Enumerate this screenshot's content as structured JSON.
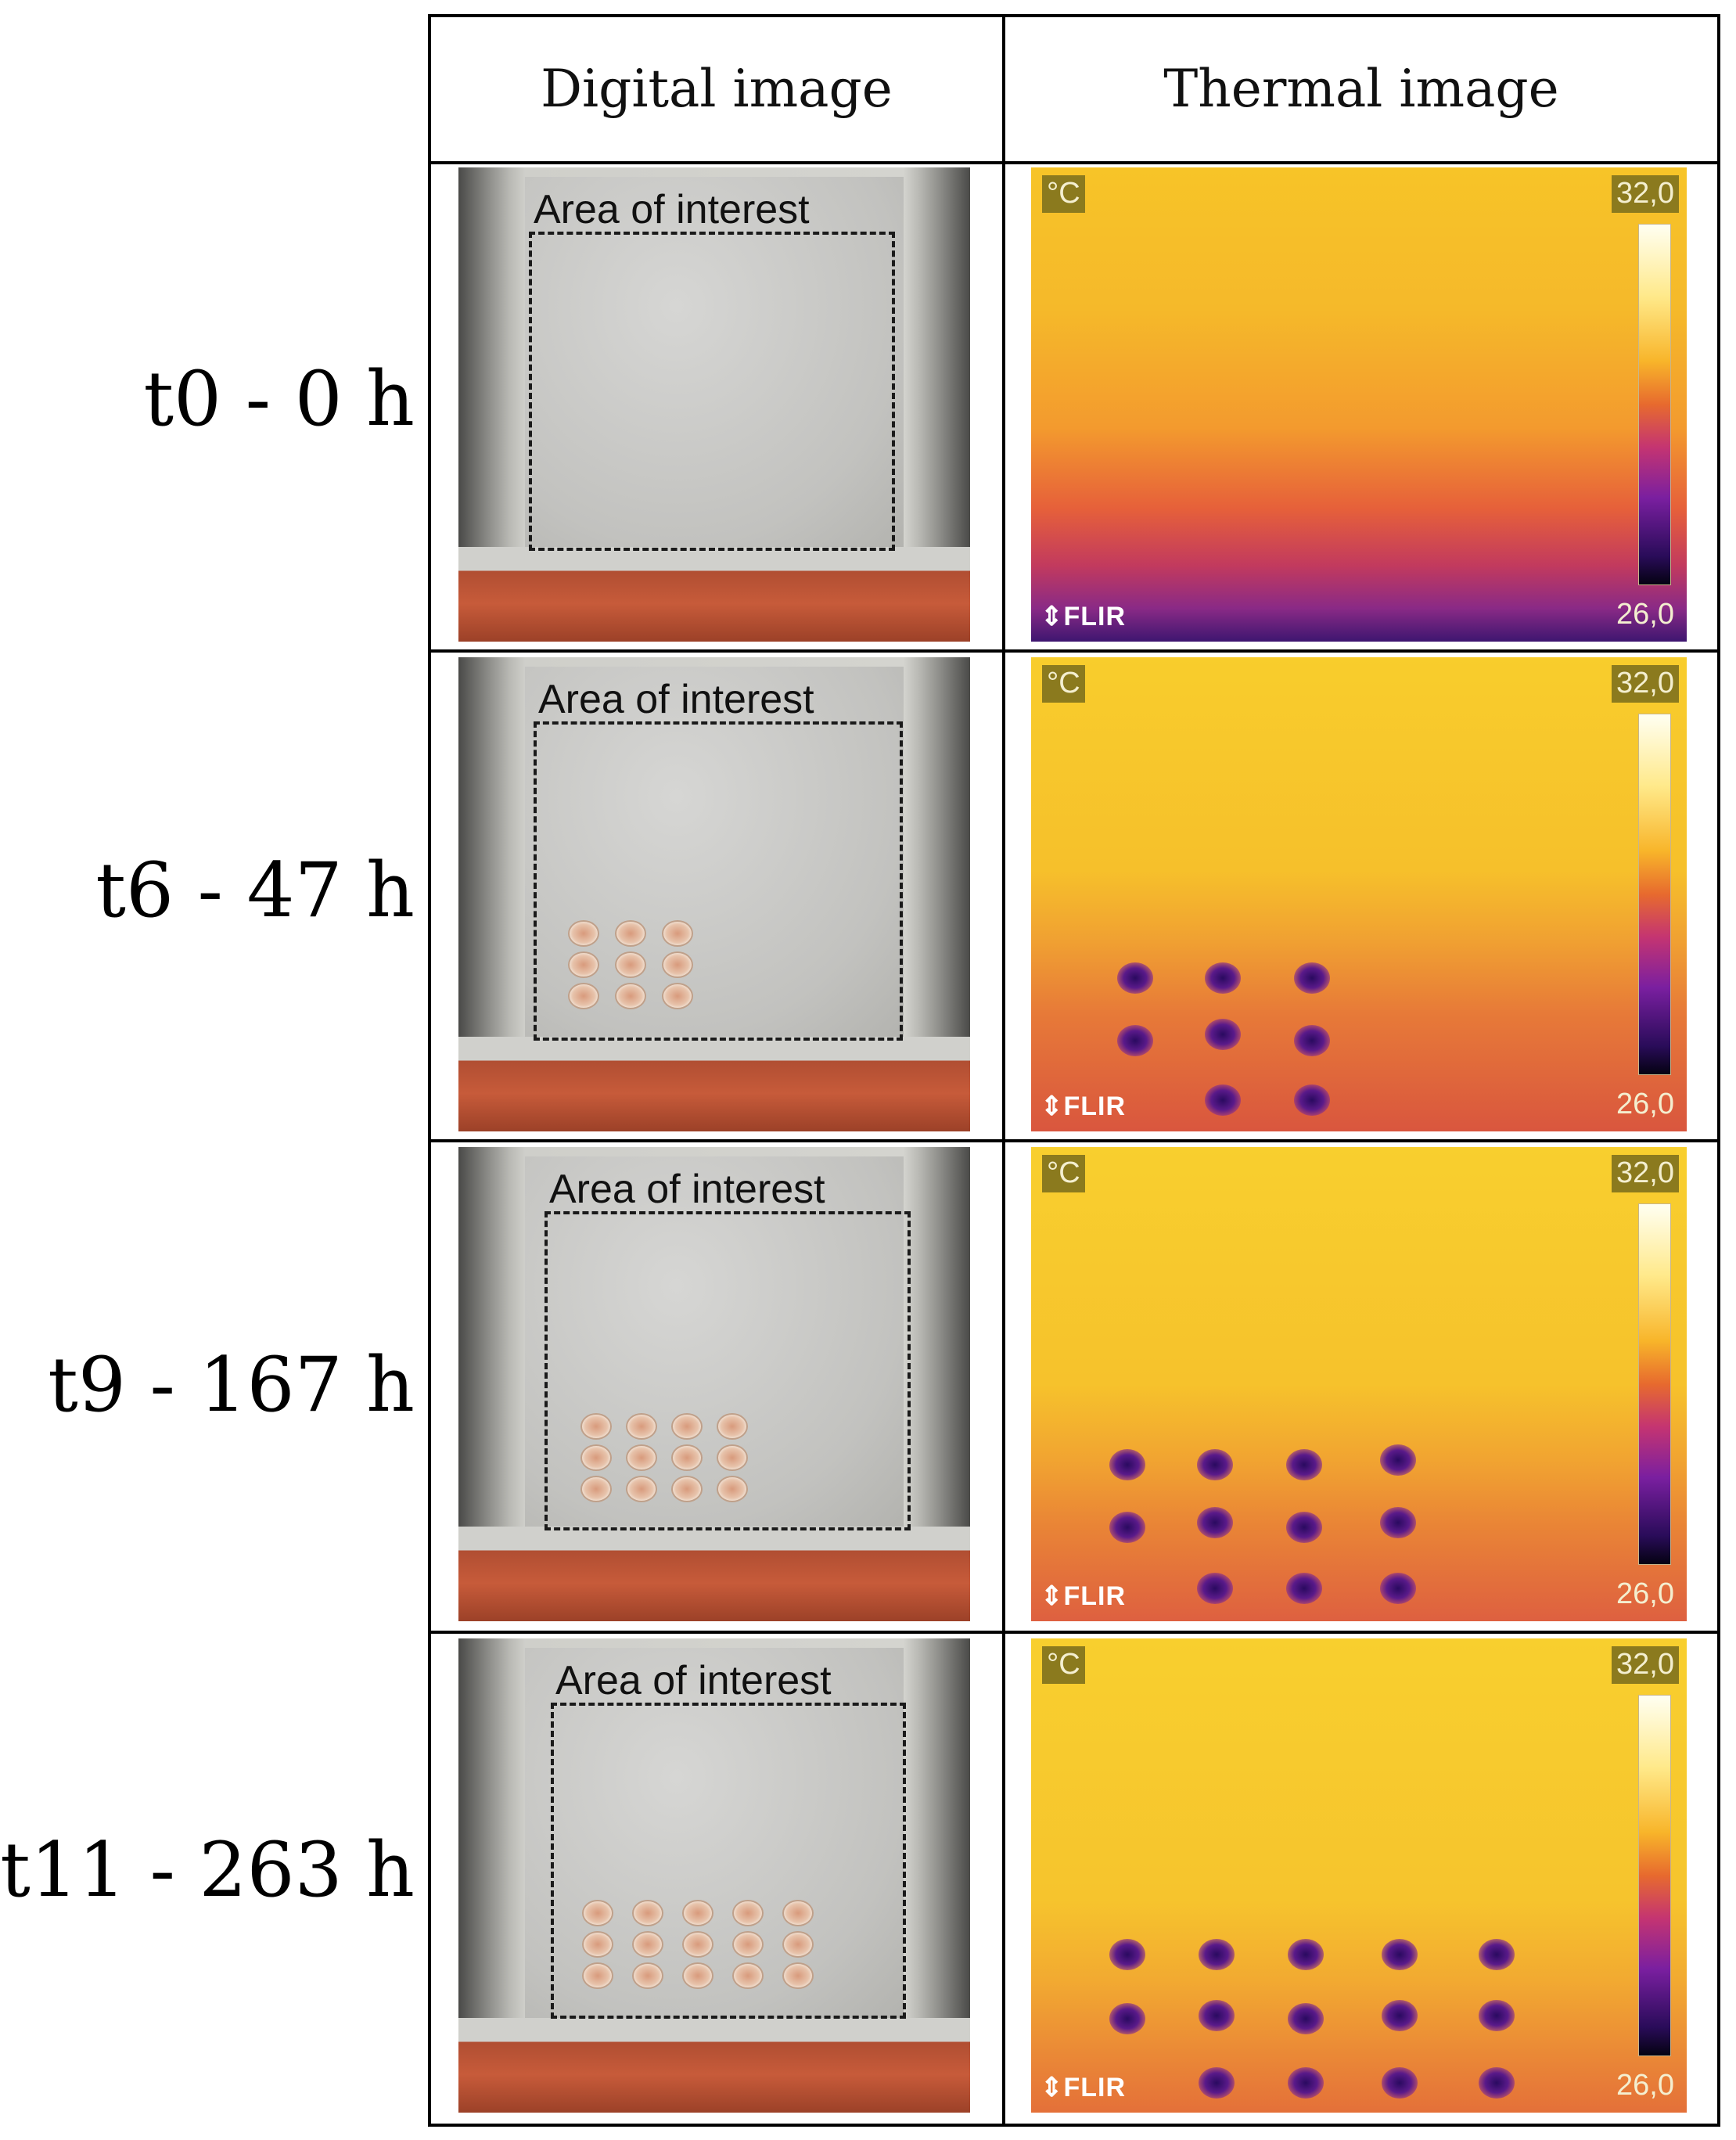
{
  "headers": {
    "digital": "Digital image",
    "thermal": "Thermal image"
  },
  "rows": [
    {
      "label": "t0 - 0 h",
      "aoi": "Area of interest",
      "unit": "°C",
      "max": "32,0",
      "min": "26,0",
      "logo": "FLIR"
    },
    {
      "label": "t6 - 47 h",
      "aoi": "Area of interest",
      "unit": "°C",
      "max": "32,0",
      "min": "26,0",
      "logo": "FLIR"
    },
    {
      "label": "t9 - 167 h",
      "aoi": "Area of interest",
      "unit": "°C",
      "max": "32,0",
      "min": "26,0",
      "logo": "FLIR"
    },
    {
      "label": "t11 - 263 h",
      "aoi": "Area of interest",
      "unit": "°C",
      "max": "32,0",
      "min": "26,0",
      "logo": "FLIR"
    }
  ],
  "colors": {
    "scale_top": "#fffff2",
    "scale_bottom": "#050212",
    "label_bg": "#8b7a1e"
  }
}
